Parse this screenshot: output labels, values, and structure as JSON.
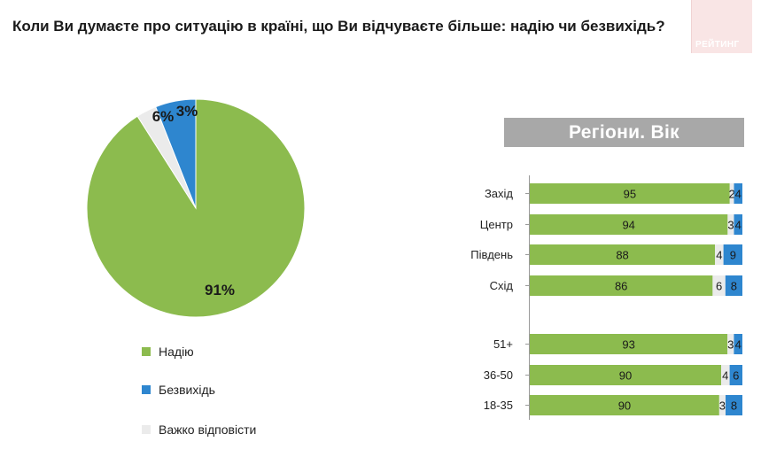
{
  "title": "Коли Ви думаєте про ситуацію в країні, що Ви відчуваєте більше: надію чи безвихідь?",
  "logo_text": "РЕЙТИНГ",
  "colors": {
    "hope": "#8cbb4e",
    "despair": "#2e86cf",
    "hard": "#ebebeb",
    "banner": "#a8a8a8"
  },
  "chart_data": [
    {
      "type": "pie",
      "slices": [
        {
          "name": "Надію",
          "value": 91,
          "label": "91%"
        },
        {
          "name": "Безвихідь",
          "value": 6,
          "label": "6%"
        },
        {
          "name": "Важко відповісти",
          "value": 3,
          "label": "3%"
        }
      ]
    },
    {
      "type": "bar",
      "orientation": "horizontal",
      "stacked": true,
      "title": "Регіони. Вік",
      "series_names": [
        "Надію",
        "Важко відповісти",
        "Безвихідь"
      ],
      "groups": [
        {
          "rows": [
            {
              "category": "Захід",
              "values": [
                95,
                2,
                4
              ]
            },
            {
              "category": "Центр",
              "values": [
                94,
                3,
                4
              ]
            },
            {
              "category": "Південь",
              "values": [
                88,
                4,
                9
              ]
            },
            {
              "category": "Схід",
              "values": [
                86,
                6,
                8
              ]
            }
          ]
        },
        {
          "rows": [
            {
              "category": "51+",
              "values": [
                93,
                3,
                4
              ]
            },
            {
              "category": "36-50",
              "values": [
                90,
                4,
                6
              ]
            },
            {
              "category": "18-35",
              "values": [
                90,
                3,
                8
              ]
            }
          ]
        }
      ]
    }
  ],
  "legend": [
    {
      "label": "Надію",
      "color": "#8cbb4e"
    },
    {
      "label": "Безвихідь",
      "color": "#2e86cf"
    },
    {
      "label": "Важко відповісти",
      "color": "#ebebeb"
    }
  ]
}
